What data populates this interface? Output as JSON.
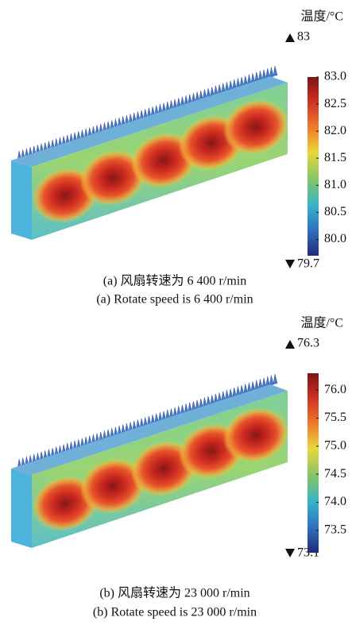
{
  "panels": [
    {
      "colorbar": {
        "title": "温度/°C",
        "max": {
          "value": 83,
          "label": "83"
        },
        "min": {
          "value": 79.7,
          "label": "79.7"
        },
        "ticks": [
          {
            "value": 83.0,
            "label": "83.0"
          },
          {
            "value": 82.5,
            "label": "82.5"
          },
          {
            "value": 82.0,
            "label": "82.0"
          },
          {
            "value": 81.5,
            "label": "81.5"
          },
          {
            "value": 81.0,
            "label": "81.0"
          },
          {
            "value": 80.5,
            "label": "80.5"
          },
          {
            "value": 80.0,
            "label": "80.0"
          }
        ]
      },
      "caption_zh": "(a) 风扇转速为 6 400 r/min",
      "caption_en": "(a) Rotate speed is 6 400 r/min"
    },
    {
      "colorbar": {
        "title": "温度/°C",
        "max": {
          "value": 76.3,
          "label": "76.3"
        },
        "min": {
          "value": 73.1,
          "label": "73.1"
        },
        "ticks": [
          {
            "value": 76.0,
            "label": "76.0"
          },
          {
            "value": 75.5,
            "label": "75.5"
          },
          {
            "value": 75.0,
            "label": "75.0"
          },
          {
            "value": 74.5,
            "label": "74.5"
          },
          {
            "value": 74.0,
            "label": "74.0"
          },
          {
            "value": 73.5,
            "label": "73.5"
          }
        ]
      },
      "caption_zh": "(b) 风扇转速为 23 000 r/min",
      "caption_en": "(b) Rotate speed is 23 000 r/min"
    }
  ]
}
